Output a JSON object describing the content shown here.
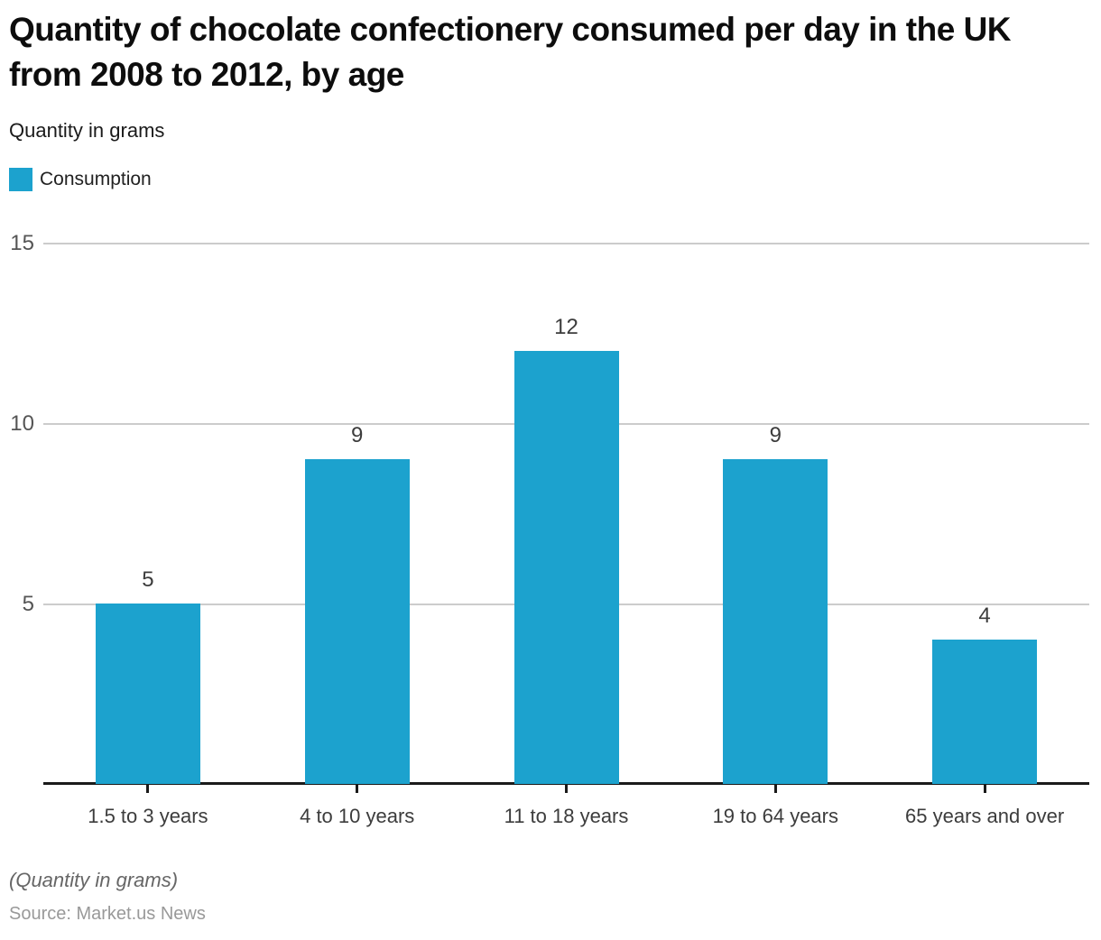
{
  "header": {
    "title": "Quantity of chocolate confectionery consumed per day in the UK from 2008 to 2012, by age",
    "subtitle": "Quantity in grams"
  },
  "legend": {
    "label": "Consumption",
    "swatch_color": "#1ca2ce"
  },
  "chart_data": {
    "type": "bar",
    "title": "Quantity of chocolate confectionery consumed per day in the UK from 2008 to 2012, by age",
    "series_name": "Consumption",
    "categories": [
      "1.5 to 3 years",
      "4 to 10 years",
      "11 to 18 years",
      "19 to 64 years",
      "65 years and over"
    ],
    "values": [
      5,
      9,
      12,
      9,
      4
    ],
    "xlabel": "",
    "ylabel": "Quantity in grams",
    "ylim": [
      0,
      15
    ],
    "yticks": [
      5,
      10,
      15
    ],
    "grid": true,
    "data_labels": true,
    "bar_color": "#1ca2ce",
    "gridline_color": "#cccccc",
    "axis_color": "#1a1a1a",
    "legend_position": "top-left"
  },
  "footer": {
    "note": "(Quantity in grams)",
    "source": "Source: Market.us News"
  }
}
